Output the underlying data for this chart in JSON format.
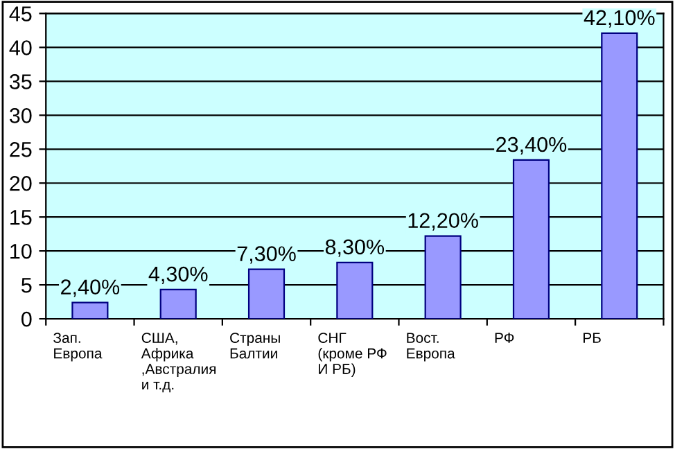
{
  "chart_data": {
    "type": "bar",
    "categories": [
      "Зап.\nЕвропа",
      "США,\nАфрика\n,Австралия\nи т.д.",
      "Страны\nБалтии",
      "СНГ\n(кроме РФ\nИ РБ)",
      "Вост.\nЕвропа",
      "РФ",
      "РБ"
    ],
    "values": [
      2.4,
      4.3,
      7.3,
      8.3,
      12.2,
      23.4,
      42.1
    ],
    "value_labels": [
      "2,40%",
      "4,30%",
      "7,30%",
      "8,30%",
      "12,20%",
      "23,40%",
      "42,10%"
    ],
    "color": "#9999ff",
    "ylim": [
      0,
      45
    ],
    "yticks": [
      0,
      5,
      10,
      15,
      20,
      25,
      30,
      35,
      40,
      45
    ],
    "grid": "y"
  }
}
